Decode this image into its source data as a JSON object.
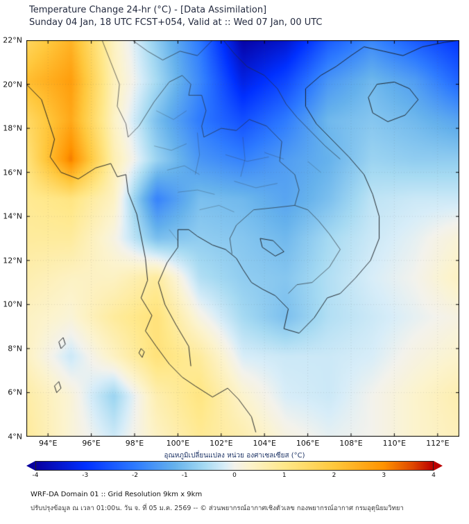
{
  "header": {
    "title": "Temperature Change 24-hr (°C) - [Data Assimilation]",
    "subtitle": "Sunday 04 Jan, 18 UTC FCST+054, Valid at :: Wed 07 Jan, 00 UTC"
  },
  "axes": {
    "x_tick_labels": [
      "94°E",
      "96°E",
      "98°E",
      "100°E",
      "102°E",
      "104°E",
      "106°E",
      "108°E",
      "110°E",
      "112°E"
    ],
    "x_tick_values": [
      94,
      96,
      98,
      100,
      102,
      104,
      106,
      108,
      110,
      112
    ],
    "y_tick_labels": [
      "4°N",
      "6°N",
      "8°N",
      "10°N",
      "12°N",
      "14°N",
      "16°N",
      "18°N",
      "20°N",
      "22°N"
    ],
    "y_tick_values": [
      4,
      6,
      8,
      10,
      12,
      14,
      16,
      18,
      20,
      22
    ]
  },
  "colorbar": {
    "label": "อุณหภูมิเปลี่ยนแปลง หน่วย องศาเซลเซียส (°C)",
    "tick_labels": [
      "-4",
      "-3",
      "-2",
      "-1",
      "0",
      "1",
      "2",
      "3",
      "4"
    ],
    "tick_values": [
      -4,
      -3,
      -2,
      -1,
      0,
      1,
      2,
      3,
      4
    ]
  },
  "footer": {
    "line1": "WRF-DA Domain 01 :: Grid Resolution 9km x 9km",
    "line2": "ปรับปรุงข้อมูล ณ เวลา 01:00น. วัน จ. ที่ 05 ม.ค. 2569 -- © ส่วนพยากรณ์อากาศเชิงตัวเลข กองพยากรณ์อากาศ กรมอุตุนิยมวิทยา"
  },
  "chart_data": {
    "type": "heatmap",
    "title": "Temperature Change 24-hr (°C) - [Data Assimilation]",
    "units": "°C",
    "xlabel": "",
    "ylabel": "",
    "lon_range": [
      93,
      113
    ],
    "lat_range": [
      4,
      22
    ],
    "lons": [
      93,
      95,
      97,
      99,
      101,
      103,
      105,
      107,
      109,
      111,
      113
    ],
    "lats": [
      22,
      20.2,
      18.4,
      16.6,
      14.8,
      13,
      11.2,
      9.4,
      7.6,
      5.8,
      4
    ],
    "values_degC": [
      [
        1.6,
        2.4,
        0.4,
        -0.8,
        -2.0,
        -3.9,
        -3.5,
        -2.4,
        -1.8,
        -2.4,
        -2.9
      ],
      [
        2.2,
        2.8,
        0.5,
        -0.6,
        -1.8,
        -3.3,
        -2.7,
        -1.6,
        -1.1,
        -1.5,
        -2.3
      ],
      [
        1.5,
        2.6,
        0.4,
        -1.0,
        -2.0,
        -2.6,
        -2.0,
        -1.1,
        -0.9,
        -1.1,
        -1.4
      ],
      [
        1.2,
        3.2,
        0.6,
        -0.7,
        -1.6,
        -1.9,
        -1.5,
        -1.2,
        -0.7,
        -0.8,
        -0.8
      ],
      [
        0.9,
        1.1,
        0.4,
        -1.9,
        -1.0,
        -1.1,
        -1.4,
        -1.0,
        -0.4,
        -0.3,
        -0.3
      ],
      [
        0.8,
        0.8,
        0.1,
        -1.0,
        -0.8,
        -0.9,
        -1.1,
        -0.6,
        -0.3,
        -0.1,
        0.2
      ],
      [
        0.6,
        0.4,
        0.4,
        0.8,
        -0.5,
        -0.8,
        -0.9,
        -0.5,
        -0.2,
        0.0,
        0.4
      ],
      [
        0.4,
        0.2,
        0.8,
        1.2,
        0.1,
        -0.6,
        -1.0,
        -0.5,
        -0.3,
        -0.1,
        0.1
      ],
      [
        0.4,
        -0.3,
        0.4,
        1.2,
        0.8,
        -0.2,
        -0.3,
        -0.3,
        -0.2,
        0.1,
        0.3
      ],
      [
        0.7,
        0.2,
        -0.7,
        0.6,
        1.1,
        0.3,
        -0.2,
        -0.3,
        0.0,
        0.3,
        0.6
      ],
      [
        0.8,
        0.2,
        -0.3,
        0.4,
        0.9,
        0.6,
        0.1,
        -0.1,
        0.0,
        0.3,
        0.5
      ]
    ],
    "value_range": [
      -4,
      4
    ],
    "colormap_stops": [
      [
        -4,
        "#08009e"
      ],
      [
        -3,
        "#0030ff"
      ],
      [
        -2,
        "#2e7bff"
      ],
      [
        -1.2,
        "#66b2ec"
      ],
      [
        -0.6,
        "#a6daf2"
      ],
      [
        -0.2,
        "#d8edf8"
      ],
      [
        0,
        "#f3f2ec"
      ],
      [
        0.3,
        "#fcf3cd"
      ],
      [
        1,
        "#ffe88a"
      ],
      [
        2,
        "#ffc83d"
      ],
      [
        3,
        "#ff9300"
      ],
      [
        3.6,
        "#de4600"
      ],
      [
        4,
        "#bb0000"
      ]
    ],
    "outlines": {
      "coastlines": [
        [
          [
            93.0,
            20.0
          ],
          [
            93.7,
            19.3
          ],
          [
            94.0,
            18.4
          ],
          [
            94.3,
            17.5
          ],
          [
            94.1,
            16.7
          ],
          [
            94.6,
            16.0
          ],
          [
            95.4,
            15.7
          ],
          [
            96.2,
            16.2
          ],
          [
            96.9,
            16.4
          ],
          [
            97.2,
            15.8
          ],
          [
            97.6,
            15.9
          ],
          [
            97.7,
            15.1
          ],
          [
            98.1,
            14.1
          ],
          [
            98.3,
            13.1
          ],
          [
            98.5,
            12.1
          ],
          [
            98.6,
            11.1
          ],
          [
            98.3,
            10.3
          ],
          [
            98.8,
            9.5
          ],
          [
            98.5,
            8.8
          ],
          [
            99.0,
            8.1
          ],
          [
            99.6,
            7.3
          ],
          [
            100.2,
            6.7
          ],
          [
            100.8,
            6.3
          ],
          [
            101.6,
            5.8
          ],
          [
            102.3,
            6.2
          ],
          [
            102.8,
            5.7
          ],
          [
            103.4,
            4.9
          ],
          [
            103.6,
            4.2
          ]
        ],
        [
          [
            100.6,
            7.2
          ],
          [
            100.5,
            8.1
          ],
          [
            99.9,
            9.1
          ],
          [
            99.4,
            10.0
          ],
          [
            99.1,
            11.0
          ],
          [
            99.5,
            11.9
          ],
          [
            100.0,
            12.6
          ],
          [
            100.0,
            13.4
          ],
          [
            100.5,
            13.4
          ],
          [
            100.9,
            13.1
          ],
          [
            101.6,
            12.7
          ],
          [
            102.2,
            12.5
          ],
          [
            102.7,
            12.1
          ],
          [
            103.0,
            11.6
          ],
          [
            103.4,
            11.0
          ],
          [
            103.9,
            10.7
          ],
          [
            104.5,
            10.4
          ],
          [
            105.1,
            9.8
          ],
          [
            104.9,
            8.9
          ],
          [
            105.6,
            8.7
          ],
          [
            106.3,
            9.4
          ],
          [
            106.9,
            10.3
          ],
          [
            107.5,
            10.5
          ],
          [
            108.2,
            11.2
          ],
          [
            108.9,
            12.0
          ],
          [
            109.3,
            13.0
          ],
          [
            109.3,
            14.0
          ],
          [
            109.0,
            15.0
          ],
          [
            108.6,
            15.9
          ],
          [
            107.9,
            16.7
          ],
          [
            107.1,
            17.5
          ],
          [
            106.4,
            18.2
          ],
          [
            105.9,
            19.0
          ],
          [
            105.9,
            19.8
          ],
          [
            106.6,
            20.4
          ],
          [
            107.3,
            20.8
          ],
          [
            108.0,
            21.3
          ],
          [
            108.6,
            21.7
          ]
        ],
        [
          [
            108.6,
            21.7
          ],
          [
            109.5,
            21.5
          ],
          [
            110.4,
            21.3
          ],
          [
            111.3,
            21.7
          ],
          [
            112.3,
            21.9
          ],
          [
            113.0,
            22.0
          ]
        ],
        [
          [
            109.2,
            20.0
          ],
          [
            110.0,
            20.1
          ],
          [
            110.7,
            19.8
          ],
          [
            111.1,
            19.3
          ],
          [
            110.5,
            18.6
          ],
          [
            109.7,
            18.3
          ],
          [
            109.0,
            18.7
          ],
          [
            108.8,
            19.4
          ],
          [
            109.2,
            20.0
          ]
        ],
        [
          [
            103.8,
            13.0
          ],
          [
            104.4,
            12.9
          ],
          [
            104.9,
            12.4
          ],
          [
            104.5,
            12.2
          ],
          [
            103.9,
            12.6
          ],
          [
            103.8,
            13.0
          ]
        ],
        [
          [
            94.6,
            8.0
          ],
          [
            94.8,
            8.2
          ],
          [
            94.7,
            8.5
          ],
          [
            94.5,
            8.3
          ],
          [
            94.6,
            8.0
          ]
        ],
        [
          [
            94.4,
            6.0
          ],
          [
            94.6,
            6.2
          ],
          [
            94.5,
            6.5
          ],
          [
            94.3,
            6.3
          ],
          [
            94.4,
            6.0
          ]
        ],
        [
          [
            98.3,
            8.0
          ],
          [
            98.45,
            7.85
          ],
          [
            98.35,
            7.6
          ],
          [
            98.2,
            7.8
          ],
          [
            98.3,
            8.0
          ]
        ]
      ],
      "borders": [
        [
          [
            97.7,
            17.6
          ],
          [
            98.2,
            18.1
          ],
          [
            98.9,
            19.2
          ],
          [
            99.6,
            20.1
          ],
          [
            100.2,
            20.4
          ],
          [
            100.6,
            20.0
          ],
          [
            100.5,
            19.5
          ],
          [
            101.1,
            19.5
          ],
          [
            101.3,
            18.8
          ],
          [
            101.1,
            18.1
          ],
          [
            101.2,
            17.6
          ]
        ],
        [
          [
            101.2,
            17.6
          ],
          [
            102.0,
            18.0
          ],
          [
            102.7,
            17.9
          ],
          [
            103.3,
            18.4
          ],
          [
            104.1,
            18.1
          ],
          [
            104.8,
            17.4
          ],
          [
            104.7,
            16.5
          ],
          [
            105.4,
            15.9
          ],
          [
            105.6,
            15.2
          ],
          [
            105.4,
            14.5
          ]
        ],
        [
          [
            105.4,
            14.5
          ],
          [
            104.5,
            14.4
          ],
          [
            103.5,
            14.3
          ],
          [
            102.7,
            13.6
          ],
          [
            102.4,
            13.0
          ],
          [
            102.5,
            12.3
          ]
        ],
        [
          [
            102.1,
            22.0
          ],
          [
            102.6,
            21.4
          ],
          [
            103.2,
            20.8
          ],
          [
            104.0,
            20.4
          ],
          [
            104.6,
            19.8
          ],
          [
            105.0,
            19.1
          ],
          [
            105.5,
            18.5
          ],
          [
            106.1,
            17.9
          ],
          [
            106.8,
            17.2
          ],
          [
            107.5,
            16.6
          ]
        ],
        [
          [
            97.9,
            22.0
          ],
          [
            98.6,
            21.5
          ],
          [
            99.3,
            21.1
          ],
          [
            100.1,
            21.5
          ],
          [
            100.9,
            21.3
          ],
          [
            101.6,
            22.0
          ],
          [
            102.1,
            22.0
          ]
        ],
        [
          [
            96.5,
            22.0
          ],
          [
            96.9,
            21.0
          ],
          [
            97.3,
            20.0
          ],
          [
            97.2,
            19.0
          ],
          [
            97.6,
            18.2
          ],
          [
            97.7,
            17.6
          ]
        ],
        [
          [
            105.4,
            14.5
          ],
          [
            106.0,
            14.3
          ],
          [
            106.5,
            13.8
          ],
          [
            107.0,
            13.2
          ],
          [
            107.5,
            12.5
          ],
          [
            107.0,
            11.7
          ],
          [
            106.2,
            11.0
          ],
          [
            105.5,
            10.9
          ],
          [
            105.1,
            10.5
          ]
        ]
      ],
      "provinces": [
        [
          [
            99.0,
            18.8
          ],
          [
            99.8,
            18.4
          ],
          [
            100.4,
            18.8
          ]
        ],
        [
          [
            98.9,
            17.2
          ],
          [
            99.7,
            17.0
          ],
          [
            100.4,
            17.3
          ]
        ],
        [
          [
            99.5,
            16.1
          ],
          [
            100.3,
            16.3
          ],
          [
            101.0,
            15.9
          ]
        ],
        [
          [
            100.0,
            15.1
          ],
          [
            100.9,
            15.2
          ],
          [
            101.7,
            15.0
          ]
        ],
        [
          [
            101.0,
            14.3
          ],
          [
            101.9,
            14.5
          ],
          [
            102.6,
            14.2
          ]
        ],
        [
          [
            102.2,
            16.8
          ],
          [
            103.2,
            16.5
          ],
          [
            104.2,
            16.7
          ]
        ],
        [
          [
            102.6,
            15.6
          ],
          [
            103.6,
            15.3
          ],
          [
            104.6,
            15.5
          ]
        ],
        [
          [
            100.9,
            17.8
          ],
          [
            101.0,
            16.8
          ],
          [
            100.8,
            15.9
          ]
        ],
        [
          [
            103.0,
            17.6
          ],
          [
            103.1,
            16.6
          ],
          [
            102.9,
            15.8
          ]
        ],
        [
          [
            99.6,
            13.4
          ],
          [
            100.0,
            12.9
          ]
        ],
        [
          [
            104.0,
            16.9
          ],
          [
            104.9,
            16.6
          ]
        ],
        [
          [
            106.0,
            16.5
          ],
          [
            106.6,
            16.0
          ]
        ]
      ]
    }
  }
}
